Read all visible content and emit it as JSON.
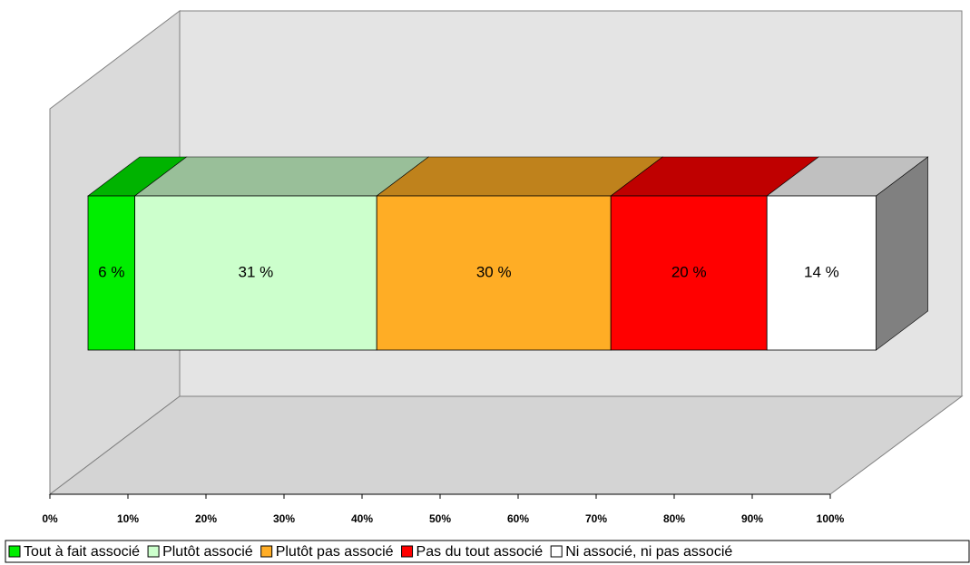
{
  "chart_data": {
    "type": "stacked_bar_3d",
    "categories": [
      ""
    ],
    "series": [
      {
        "name": "Tout à fait associé",
        "color": "#00ee00",
        "values": [
          6
        ],
        "value_labels": [
          "6 %"
        ]
      },
      {
        "name": "Plutôt associé",
        "color": "#ccffcc",
        "values": [
          31
        ],
        "value_labels": [
          "31 %"
        ]
      },
      {
        "name": "Plutôt pas associé",
        "color": "#ffad25",
        "values": [
          30
        ],
        "value_labels": [
          "30 %"
        ]
      },
      {
        "name": "Pas du tout associé",
        "color": "#ff0000",
        "values": [
          20
        ],
        "value_labels": [
          "20 %"
        ]
      },
      {
        "name": "Ni associé, ni pas associé",
        "color": "#ffffff",
        "values": [
          14
        ],
        "value_labels": [
          "14 %"
        ]
      }
    ],
    "xlim": [
      0,
      100
    ],
    "xticks": [
      {
        "value": 0,
        "label": "0%"
      },
      {
        "value": 10,
        "label": "10%"
      },
      {
        "value": 20,
        "label": "20%"
      },
      {
        "value": 30,
        "label": "30%"
      },
      {
        "value": 40,
        "label": "40%"
      },
      {
        "value": 50,
        "label": "50%"
      },
      {
        "value": 60,
        "label": "60%"
      },
      {
        "value": 70,
        "label": "70%"
      },
      {
        "value": 80,
        "label": "80%"
      },
      {
        "value": 90,
        "label": "90%"
      },
      {
        "value": 100,
        "label": "100%"
      }
    ],
    "legend": "bottom"
  }
}
